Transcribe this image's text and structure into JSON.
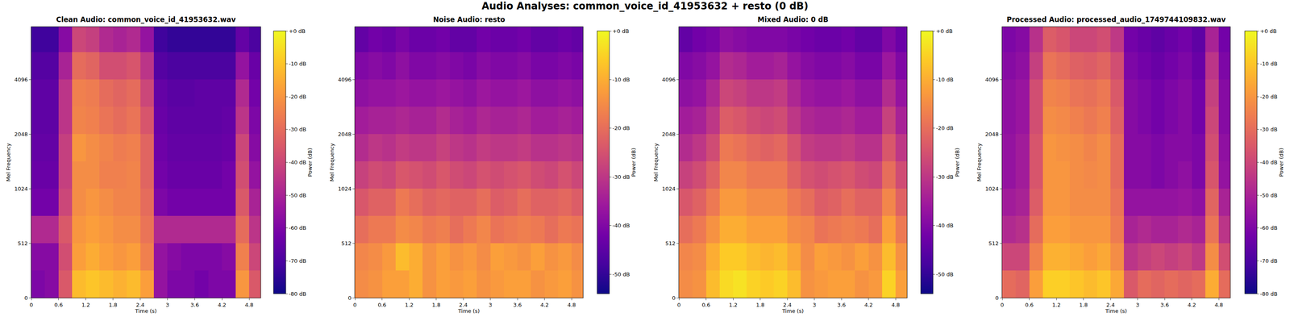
{
  "title": "Audio Analyses: common_voice_id_41953632 + resto (0 dB)",
  "colors": [
    "#0d0887",
    "#46039f",
    "#7201a8",
    "#9c179e",
    "#bd3786",
    "#d8576b",
    "#ed7953",
    "#fb9f3a",
    "#fdca26",
    "#f0f921"
  ],
  "chart_data": [
    {
      "type": "heatmap",
      "title": "Clean Audio: common_voice_id_41953632.wav",
      "x_label": "Time (s)",
      "y_label": "Mel Frequency",
      "xlim": [
        0,
        5.05
      ],
      "xticks": [
        0,
        0.6,
        1.2,
        1.8,
        2.4,
        3,
        3.6,
        4.2,
        4.8
      ],
      "ylim": [
        0,
        8000
      ],
      "yticks": [
        0,
        512,
        1024,
        2048,
        4096
      ],
      "x": [
        0,
        0.3,
        0.6,
        0.9,
        1.2,
        1.5,
        1.8,
        2.1,
        2.4,
        2.7,
        3.0,
        3.3,
        3.6,
        3.9,
        4.2,
        4.5,
        4.8,
        5.05
      ],
      "y": [
        0,
        256,
        512,
        724,
        1024,
        1448,
        2048,
        2896,
        4096,
        5793,
        8000
      ],
      "values": [
        [
          -60,
          -58,
          -35,
          -12,
          -10,
          -12,
          -14,
          -12,
          -18,
          -55,
          -60,
          -60,
          -62,
          -60,
          -60,
          -20,
          -35
        ],
        [
          -58,
          -58,
          -38,
          -18,
          -15,
          -18,
          -20,
          -18,
          -25,
          -55,
          -58,
          -60,
          -60,
          -60,
          -58,
          -25,
          -40
        ],
        [
          -48,
          -48,
          -35,
          -20,
          -18,
          -20,
          -22,
          -22,
          -28,
          -48,
          -48,
          -48,
          -48,
          -48,
          -48,
          -30,
          -45
        ],
        [
          -62,
          -62,
          -40,
          -22,
          -20,
          -22,
          -24,
          -24,
          -30,
          -60,
          -62,
          -62,
          -62,
          -62,
          -62,
          -35,
          -50
        ],
        [
          -64,
          -64,
          -42,
          -22,
          -22,
          -25,
          -25,
          -24,
          -32,
          -62,
          -64,
          -64,
          -64,
          -64,
          -62,
          -38,
          -55
        ],
        [
          -65,
          -65,
          -42,
          -20,
          -22,
          -24,
          -26,
          -25,
          -32,
          -63,
          -65,
          -65,
          -65,
          -65,
          -64,
          -40,
          -58
        ],
        [
          -66,
          -66,
          -45,
          -24,
          -25,
          -28,
          -30,
          -28,
          -36,
          -64,
          -66,
          -66,
          -66,
          -66,
          -65,
          -45,
          -60
        ],
        [
          -66,
          -66,
          -45,
          -25,
          -26,
          -30,
          -32,
          -30,
          -40,
          -65,
          -67,
          -67,
          -66,
          -66,
          -66,
          -48,
          -62
        ],
        [
          -68,
          -68,
          -50,
          -30,
          -32,
          -38,
          -38,
          -36,
          -45,
          -68,
          -70,
          -70,
          -70,
          -70,
          -70,
          -55,
          -64
        ],
        [
          -72,
          -72,
          -58,
          -40,
          -42,
          -48,
          -50,
          -48,
          -55,
          -72,
          -74,
          -74,
          -74,
          -74,
          -74,
          -65,
          -70
        ]
      ],
      "colorbar_label": "Power (dB)",
      "colorbar_range": [
        -80,
        0
      ],
      "colorbar_ticks": [
        {
          "value": 0,
          "label": "+0 dB"
        },
        {
          "value": -10,
          "label": "-10 dB"
        },
        {
          "value": -20,
          "label": "-20 dB"
        },
        {
          "value": -30,
          "label": "-30 dB"
        },
        {
          "value": -40,
          "label": "-40 dB"
        },
        {
          "value": -50,
          "label": "-50 dB"
        },
        {
          "value": -60,
          "label": "-60 dB"
        },
        {
          "value": -70,
          "label": "-70 dB"
        },
        {
          "value": -80,
          "label": "-80 dB"
        }
      ]
    },
    {
      "type": "heatmap",
      "title": "Noise Audio: resto",
      "x_label": "Time (s)",
      "y_label": "Mel Frequency",
      "xlim": [
        0,
        5.05
      ],
      "xticks": [
        0,
        0.6,
        1.2,
        1.8,
        2.4,
        3,
        3.6,
        4.2,
        4.8
      ],
      "ylim": [
        0,
        8000
      ],
      "yticks": [
        0,
        512,
        1024,
        2048,
        4096
      ],
      "x": [
        0,
        0.3,
        0.6,
        0.9,
        1.2,
        1.5,
        1.8,
        2.1,
        2.4,
        2.7,
        3.0,
        3.3,
        3.6,
        3.9,
        4.2,
        4.5,
        4.8,
        5.05
      ],
      "y": [
        0,
        256,
        512,
        724,
        1024,
        1448,
        2048,
        2896,
        4096,
        5793,
        8000
      ],
      "values": [
        [
          -15,
          -14,
          -12,
          -12,
          -10,
          -14,
          -12,
          -13,
          -12,
          -14,
          -13,
          -12,
          -12,
          -14,
          -13,
          -12,
          -14
        ],
        [
          -16,
          -15,
          -13,
          -8,
          -10,
          -14,
          -12,
          -14,
          -13,
          -15,
          -12,
          -13,
          -14,
          -12,
          -14,
          -13,
          -15
        ],
        [
          -20,
          -18,
          -18,
          -15,
          -16,
          -18,
          -17,
          -20,
          -18,
          -16,
          -19,
          -18,
          -17,
          -18,
          -20,
          -18,
          -19
        ],
        [
          -24,
          -22,
          -22,
          -18,
          -20,
          -22,
          -21,
          -22,
          -22,
          -20,
          -23,
          -22,
          -20,
          -22,
          -22,
          -21,
          -23
        ],
        [
          -28,
          -26,
          -27,
          -24,
          -25,
          -26,
          -24,
          -26,
          -27,
          -25,
          -26,
          -25,
          -24,
          -26,
          -27,
          -25,
          -27
        ],
        [
          -32,
          -30,
          -31,
          -29,
          -30,
          -30,
          -28,
          -30,
          -31,
          -29,
          -30,
          -30,
          -29,
          -31,
          -31,
          -30,
          -31
        ],
        [
          -35,
          -34,
          -34,
          -33,
          -34,
          -34,
          -32,
          -34,
          -35,
          -33,
          -34,
          -34,
          -33,
          -35,
          -35,
          -34,
          -35
        ],
        [
          -38,
          -37,
          -37,
          -36,
          -37,
          -37,
          -36,
          -37,
          -38,
          -36,
          -37,
          -37,
          -36,
          -38,
          -38,
          -37,
          -38
        ],
        [
          -40,
          -39,
          -40,
          -38,
          -40,
          -40,
          -39,
          -40,
          -41,
          -39,
          -40,
          -40,
          -39,
          -41,
          -41,
          -40,
          -41
        ],
        [
          -44,
          -42,
          -43,
          -41,
          -43,
          -43,
          -42,
          -44,
          -44,
          -42,
          -43,
          -43,
          -42,
          -44,
          -44,
          -43,
          -44
        ]
      ],
      "colorbar_label": "Power (dB)",
      "colorbar_range": [
        -54,
        0
      ],
      "colorbar_ticks": [
        {
          "value": 0,
          "label": "+0 dB"
        },
        {
          "value": -10,
          "label": "-10 dB"
        },
        {
          "value": -20,
          "label": "-20 dB"
        },
        {
          "value": -30,
          "label": "-30 dB"
        },
        {
          "value": -40,
          "label": "-40 dB"
        },
        {
          "value": -50,
          "label": "-50 dB"
        }
      ]
    },
    {
      "type": "heatmap",
      "title": "Mixed Audio: 0 dB",
      "x_label": "Time (s)",
      "y_label": "Mel Frequency",
      "xlim": [
        0,
        5.05
      ],
      "xticks": [
        0,
        0.6,
        1.2,
        1.8,
        2.4,
        3,
        3.6,
        4.2,
        4.8
      ],
      "ylim": [
        0,
        8000
      ],
      "yticks": [
        0,
        512,
        1024,
        2048,
        4096
      ],
      "x": [
        0,
        0.3,
        0.6,
        0.9,
        1.2,
        1.5,
        1.8,
        2.1,
        2.4,
        2.7,
        3.0,
        3.3,
        3.6,
        3.9,
        4.2,
        4.5,
        4.8,
        5.05
      ],
      "y": [
        0,
        256,
        512,
        724,
        1024,
        1448,
        2048,
        2896,
        4096,
        5793,
        8000
      ],
      "values": [
        [
          -15,
          -14,
          -8,
          -4,
          -3,
          -5,
          -6,
          -5,
          -8,
          -14,
          -13,
          -12,
          -12,
          -14,
          -13,
          -5,
          -12
        ],
        [
          -16,
          -15,
          -10,
          -6,
          -6,
          -8,
          -9,
          -8,
          -11,
          -15,
          -12,
          -13,
          -14,
          -12,
          -14,
          -8,
          -14
        ],
        [
          -20,
          -18,
          -14,
          -10,
          -10,
          -12,
          -12,
          -12,
          -15,
          -16,
          -19,
          -18,
          -17,
          -18,
          -20,
          -12,
          -18
        ],
        [
          -24,
          -22,
          -18,
          -13,
          -13,
          -15,
          -15,
          -15,
          -18,
          -20,
          -23,
          -22,
          -20,
          -22,
          -22,
          -16,
          -22
        ],
        [
          -28,
          -26,
          -22,
          -16,
          -16,
          -18,
          -18,
          -18,
          -22,
          -25,
          -26,
          -25,
          -24,
          -26,
          -27,
          -20,
          -26
        ],
        [
          -32,
          -30,
          -26,
          -18,
          -19,
          -21,
          -22,
          -21,
          -25,
          -29,
          -30,
          -30,
          -29,
          -31,
          -31,
          -24,
          -30
        ],
        [
          -35,
          -34,
          -30,
          -23,
          -24,
          -26,
          -27,
          -26,
          -30,
          -33,
          -34,
          -34,
          -33,
          -35,
          -35,
          -28,
          -34
        ],
        [
          -38,
          -37,
          -33,
          -27,
          -28,
          -30,
          -30,
          -29,
          -33,
          -36,
          -37,
          -37,
          -36,
          -38,
          -38,
          -32,
          -37
        ],
        [
          -40,
          -39,
          -37,
          -32,
          -33,
          -35,
          -35,
          -34,
          -37,
          -39,
          -40,
          -40,
          -39,
          -41,
          -41,
          -36,
          -40
        ],
        [
          -44,
          -42,
          -41,
          -38,
          -39,
          -40,
          -40,
          -40,
          -41,
          -42,
          -43,
          -43,
          -42,
          -44,
          -44,
          -40,
          -43
        ]
      ],
      "colorbar_label": "Power (dB)",
      "colorbar_range": [
        -54,
        0
      ],
      "colorbar_ticks": [
        {
          "value": 0,
          "label": "+0 dB"
        },
        {
          "value": -10,
          "label": "-10 dB"
        },
        {
          "value": -20,
          "label": "-20 dB"
        },
        {
          "value": -30,
          "label": "-30 dB"
        },
        {
          "value": -40,
          "label": "-40 dB"
        },
        {
          "value": -50,
          "label": "-50 dB"
        }
      ]
    },
    {
      "type": "heatmap",
      "title": "Processed Audio: processed_audio_1749744109832.wav",
      "x_label": "Time (s)",
      "y_label": "Mel Frequency",
      "xlim": [
        0,
        5.05
      ],
      "xticks": [
        0,
        0.6,
        1.2,
        1.8,
        2.4,
        3,
        3.6,
        4.2,
        4.8
      ],
      "ylim": [
        0,
        8000
      ],
      "yticks": [
        0,
        512,
        1024,
        2048,
        4096
      ],
      "x": [
        0,
        0.3,
        0.6,
        0.9,
        1.2,
        1.5,
        1.8,
        2.1,
        2.4,
        2.7,
        3.0,
        3.3,
        3.6,
        3.9,
        4.2,
        4.5,
        4.8,
        5.05
      ],
      "y": [
        0,
        256,
        512,
        724,
        1024,
        1448,
        2048,
        2896,
        4096,
        5793,
        8000
      ],
      "values": [
        [
          -30,
          -32,
          -18,
          -8,
          -8,
          -10,
          -12,
          -10,
          -16,
          -35,
          -30,
          -32,
          -30,
          -32,
          -30,
          -15,
          -30
        ],
        [
          -40,
          -40,
          -25,
          -14,
          -14,
          -16,
          -18,
          -16,
          -22,
          -45,
          -42,
          -40,
          -42,
          -40,
          -44,
          -22,
          -38
        ],
        [
          -48,
          -46,
          -30,
          -18,
          -18,
          -20,
          -20,
          -20,
          -26,
          -50,
          -48,
          -50,
          -50,
          -48,
          -50,
          -28,
          -45
        ],
        [
          -52,
          -50,
          -34,
          -20,
          -20,
          -22,
          -22,
          -22,
          -28,
          -55,
          -55,
          -55,
          -55,
          -54,
          -56,
          -32,
          -50
        ],
        [
          -55,
          -52,
          -36,
          -20,
          -20,
          -22,
          -23,
          -22,
          -30,
          -58,
          -58,
          -60,
          -58,
          -56,
          -60,
          -36,
          -55
        ],
        [
          -55,
          -52,
          -36,
          -20,
          -21,
          -22,
          -24,
          -22,
          -30,
          -58,
          -58,
          -60,
          -58,
          -58,
          -60,
          -38,
          -56
        ],
        [
          -56,
          -54,
          -38,
          -22,
          -23,
          -25,
          -27,
          -25,
          -33,
          -58,
          -60,
          -62,
          -60,
          -58,
          -62,
          -40,
          -58
        ],
        [
          -56,
          -54,
          -38,
          -24,
          -25,
          -28,
          -29,
          -27,
          -35,
          -58,
          -60,
          -62,
          -60,
          -58,
          -62,
          -42,
          -58
        ],
        [
          -58,
          -56,
          -42,
          -28,
          -30,
          -33,
          -34,
          -32,
          -38,
          -60,
          -62,
          -64,
          -62,
          -60,
          -64,
          -45,
          -60
        ],
        [
          -60,
          -58,
          -46,
          -34,
          -36,
          -40,
          -40,
          -38,
          -44,
          -62,
          -64,
          -66,
          -64,
          -62,
          -66,
          -50,
          -62
        ]
      ],
      "colorbar_label": "Power (dB)",
      "colorbar_range": [
        -80,
        0
      ],
      "colorbar_ticks": [
        {
          "value": 0,
          "label": "+0 dB"
        },
        {
          "value": -10,
          "label": "-10 dB"
        },
        {
          "value": -20,
          "label": "-20 dB"
        },
        {
          "value": -30,
          "label": "-30 dB"
        },
        {
          "value": -40,
          "label": "-40 dB"
        },
        {
          "value": -50,
          "label": "-50 dB"
        },
        {
          "value": -60,
          "label": "-60 dB"
        },
        {
          "value": -70,
          "label": "-70 dB"
        },
        {
          "value": -80,
          "label": "-80 dB"
        }
      ]
    }
  ]
}
